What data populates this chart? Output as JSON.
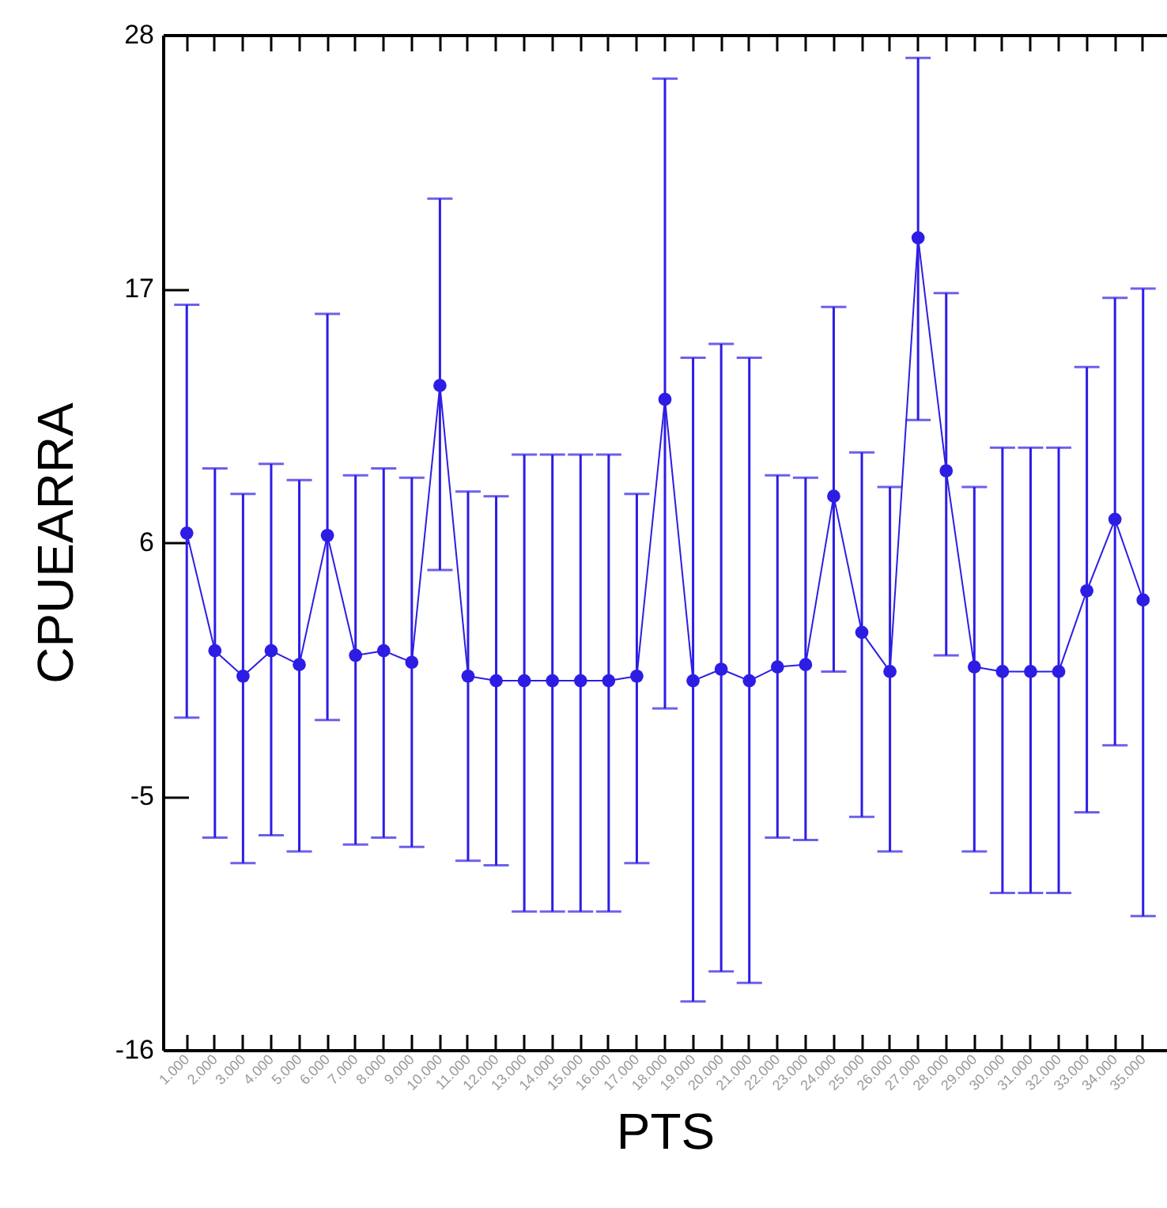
{
  "chart_data": {
    "type": "line",
    "xlabel": "PTS",
    "ylabel": "CPUEARRA",
    "categories": [
      "1.000",
      "2.000",
      "3.000",
      "4.000",
      "5.000",
      "6.000",
      "7.000",
      "8.000",
      "9.000",
      "10.000",
      "11.000",
      "12.000",
      "13.000",
      "14.000",
      "15.000",
      "16.000",
      "17.000",
      "18.000",
      "19.000",
      "20.000",
      "21.000",
      "22.000",
      "23.000",
      "24.000",
      "25.000",
      "26.000",
      "27.000",
      "28.000",
      "29.000",
      "30.000",
      "31.000",
      "32.000",
      "33.000",
      "34.000",
      "35.000"
    ],
    "series": [
      {
        "color": "#2d1de4",
        "values": [
          6.4,
          1.3,
          0.2,
          1.3,
          0.7,
          6.3,
          1.1,
          1.3,
          0.8,
          12.8,
          0.2,
          0,
          0,
          0,
          0,
          0,
          0.2,
          12.2,
          0,
          0.5,
          0,
          0.6,
          0.7,
          8.0,
          2.1,
          0.4,
          19.2,
          9.1,
          0.6,
          0.4,
          0.4,
          0.4,
          3.9,
          7.0,
          3.5
        ],
        "errors": [
          [
            -1.6,
            16.3
          ],
          [
            -6.8,
            9.2
          ],
          [
            -7.9,
            8.1
          ],
          [
            -6.7,
            9.4
          ],
          [
            -7.4,
            8.7
          ],
          [
            -1.7,
            15.9
          ],
          [
            -7.1,
            8.9
          ],
          [
            -6.8,
            9.2
          ],
          [
            -7.2,
            8.8
          ],
          [
            4.8,
            20.9
          ],
          [
            -7.8,
            8.2
          ],
          [
            -8.0,
            8.0
          ],
          [
            -10.0,
            9.8
          ],
          [
            -10.0,
            9.8
          ],
          [
            -10.0,
            9.8
          ],
          [
            -10.0,
            9.8
          ],
          [
            -7.9,
            8.1
          ],
          [
            -1.2,
            26.1
          ],
          [
            -13.9,
            14.0
          ],
          [
            -12.6,
            14.6
          ],
          [
            -13.1,
            14.0
          ],
          [
            -6.8,
            8.9
          ],
          [
            -6.9,
            8.8
          ],
          [
            0.4,
            16.2
          ],
          [
            -5.9,
            9.9
          ],
          [
            -7.4,
            8.4
          ],
          [
            11.3,
            27.0
          ],
          [
            1.1,
            16.8
          ],
          [
            -7.4,
            8.4
          ],
          [
            -9.2,
            10.1
          ],
          [
            -9.2,
            10.1
          ],
          [
            -9.2,
            10.1
          ],
          [
            -5.7,
            13.6
          ],
          [
            -2.8,
            16.6
          ],
          [
            -10.2,
            17.0
          ]
        ]
      }
    ],
    "ylim": [
      -16,
      28
    ],
    "yticks": [
      -16,
      -5,
      6,
      17,
      28
    ],
    "grid": false,
    "marker": "circle",
    "line_style": "solid"
  }
}
